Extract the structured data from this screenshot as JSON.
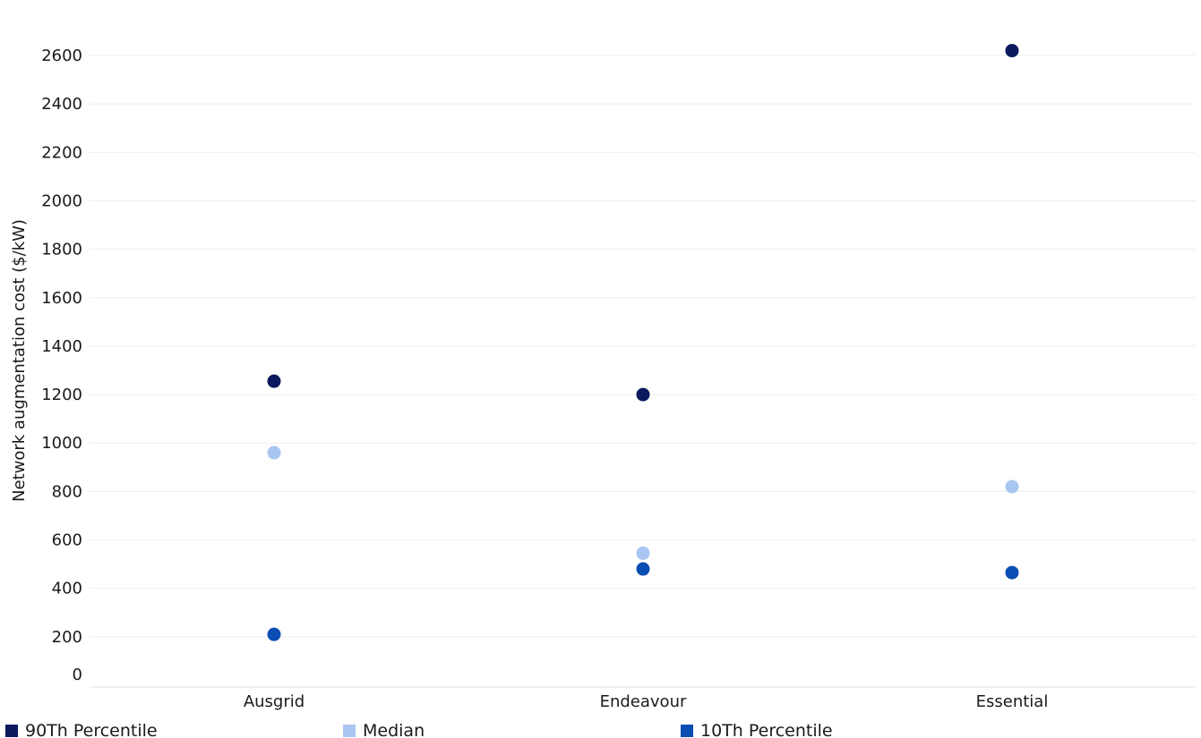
{
  "chart_data": {
    "type": "scatter",
    "title": "",
    "xlabel": "",
    "ylabel": "Network augmentation cost ($/kW)",
    "categories": [
      "Ausgrid",
      "Endeavour",
      "Essential"
    ],
    "ylim": [
      0,
      2700
    ],
    "yticks": [
      0,
      200,
      400,
      600,
      800,
      1000,
      1200,
      1400,
      1600,
      1800,
      2000,
      2200,
      2400,
      2600
    ],
    "grid": true,
    "legend_position": "bottom",
    "series": [
      {
        "name": "90Th Percentile",
        "color": "#0b1a5c",
        "values": [
          1255,
          1200,
          2620
        ]
      },
      {
        "name": "Median",
        "color": "#a9c6f2",
        "values": [
          960,
          545,
          820
        ]
      },
      {
        "name": "10Th Percentile",
        "color": "#0a4db3",
        "values": [
          210,
          480,
          465
        ]
      }
    ]
  }
}
